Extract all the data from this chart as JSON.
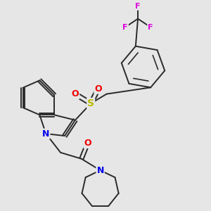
{
  "background_color": "#e6e6e6",
  "bond_color": "#2a2a2a",
  "bond_width": 1.4,
  "atom_colors": {
    "N": "#0000ee",
    "O": "#ee0000",
    "S": "#bbbb00",
    "F": "#dd00dd",
    "C": "#2a2a2a"
  },
  "figsize": [
    3.0,
    3.0
  ],
  "dpi": 100
}
